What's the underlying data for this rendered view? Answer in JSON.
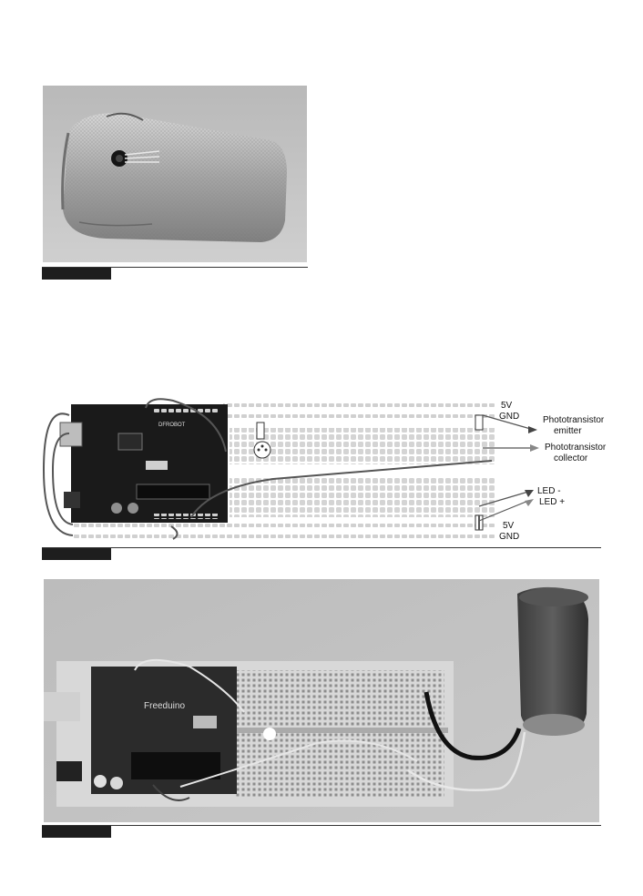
{
  "page": {
    "figures": [
      {
        "id": "wrapped-sensor-photo",
        "caption_number": ""
      },
      {
        "id": "breadboard-wiring-diagram",
        "caption_number": ""
      },
      {
        "id": "assembled-circuit-photo",
        "caption_number": ""
      }
    ]
  },
  "diagram": {
    "top_5v": "5V",
    "top_gnd": "GND",
    "phototransistor_emitter_1": "Phototransistor",
    "phototransistor_emitter_2": "emitter",
    "phototransistor_collector_1": "Phototransistor",
    "phototransistor_collector_2": "collector",
    "led_minus": "LED -",
    "led_plus": "LED +",
    "bottom_5v": "5V",
    "bottom_gnd": "GND"
  }
}
